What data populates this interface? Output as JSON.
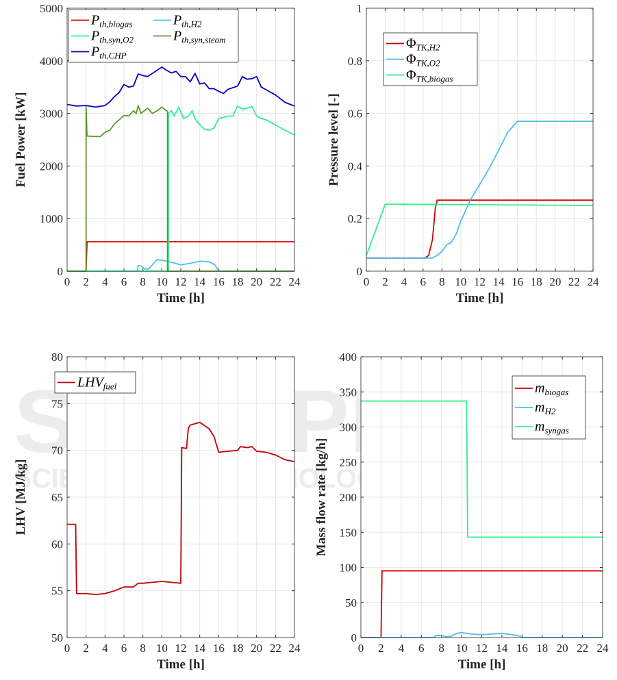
{
  "watermark": {
    "main": "SCITEPRESS",
    "sub": "SCIENCE AND TECHNOLOGY PUBLICATIONS"
  },
  "chart_data": [
    {
      "type": "line",
      "xlabel": "Time [h]",
      "ylabel": "Fuel Power [kW]",
      "xlim": [
        0,
        24
      ],
      "ylim": [
        0,
        5000
      ],
      "xticks": [
        0,
        2,
        4,
        6,
        8,
        10,
        12,
        14,
        16,
        18,
        20,
        22,
        24
      ],
      "yticks": [
        0,
        1000,
        2000,
        3000,
        4000,
        5000
      ],
      "grid": true,
      "legend_placement": "top-left",
      "legend_columns": 2,
      "series": [
        {
          "name": "P",
          "sub": "th,biogas",
          "color": "#d40000",
          "points": [
            [
              0,
              0
            ],
            [
              2,
              0
            ],
            [
              2.1,
              560
            ],
            [
              24,
              560
            ]
          ]
        },
        {
          "name": "P",
          "sub": "th,H2",
          "color": "#4dbeee",
          "points": [
            [
              0,
              0
            ],
            [
              7.4,
              0
            ],
            [
              7.5,
              110
            ],
            [
              7.8,
              100
            ],
            [
              8.2,
              40
            ],
            [
              8.6,
              40
            ],
            [
              9,
              120
            ],
            [
              9.5,
              220
            ],
            [
              10,
              210
            ],
            [
              11,
              170
            ],
            [
              12,
              120
            ],
            [
              13,
              150
            ],
            [
              14,
              190
            ],
            [
              15,
              180
            ],
            [
              15.6,
              120
            ],
            [
              16,
              10
            ],
            [
              16.1,
              0
            ],
            [
              24,
              0
            ]
          ]
        },
        {
          "name": "P",
          "sub": "th,syn,O2",
          "color": "#2ef08a",
          "points": [
            [
              0,
              0
            ],
            [
              10.7,
              0
            ],
            [
              10.7,
              3000
            ],
            [
              11,
              3050
            ],
            [
              11.3,
              2950
            ],
            [
              11.8,
              3120
            ],
            [
              12.3,
              2900
            ],
            [
              12.8,
              2950
            ],
            [
              13.2,
              3050
            ],
            [
              13.5,
              2900
            ],
            [
              14,
              2780
            ],
            [
              14.5,
              2700
            ],
            [
              15,
              2680
            ],
            [
              15.5,
              2720
            ],
            [
              16,
              2900
            ],
            [
              17,
              2950
            ],
            [
              17.5,
              2950
            ],
            [
              18,
              3140
            ],
            [
              18.5,
              3080
            ],
            [
              19,
              3100
            ],
            [
              19.5,
              3130
            ],
            [
              20,
              2950
            ],
            [
              20.5,
              2900
            ],
            [
              21,
              2880
            ],
            [
              22,
              2780
            ],
            [
              23,
              2680
            ],
            [
              24,
              2590
            ]
          ]
        },
        {
          "name": "P",
          "sub": "th,syn,steam",
          "color": "#5a9a2a",
          "points": [
            [
              0,
              0
            ],
            [
              2,
              0
            ],
            [
              2,
              3150
            ],
            [
              2.1,
              2570
            ],
            [
              3,
              2560
            ],
            [
              3.5,
              2560
            ],
            [
              4,
              2640
            ],
            [
              4.5,
              2680
            ],
            [
              5,
              2800
            ],
            [
              6,
              2960
            ],
            [
              6.5,
              2950
            ],
            [
              7,
              3050
            ],
            [
              7.3,
              3000
            ],
            [
              7.5,
              3150
            ],
            [
              7.8,
              3000
            ],
            [
              8.5,
              3100
            ],
            [
              9,
              3000
            ],
            [
              9.5,
              3050
            ],
            [
              10,
              3120
            ],
            [
              10.5,
              3050
            ],
            [
              10.6,
              3040
            ],
            [
              10.6,
              0
            ],
            [
              24,
              0
            ]
          ]
        },
        {
          "name": "P",
          "sub": "th,CHP",
          "color": "#0000c8",
          "points": [
            [
              0,
              3170
            ],
            [
              1,
              3140
            ],
            [
              2,
              3150
            ],
            [
              3,
              3120
            ],
            [
              4,
              3150
            ],
            [
              4.5,
              3220
            ],
            [
              5,
              3320
            ],
            [
              5.5,
              3400
            ],
            [
              6,
              3550
            ],
            [
              6.5,
              3500
            ],
            [
              7,
              3520
            ],
            [
              7.5,
              3750
            ],
            [
              8,
              3720
            ],
            [
              8.5,
              3700
            ],
            [
              9,
              3760
            ],
            [
              10,
              3880
            ],
            [
              10.5,
              3820
            ],
            [
              11,
              3770
            ],
            [
              11.5,
              3800
            ],
            [
              12,
              3700
            ],
            [
              12.5,
              3700
            ],
            [
              13,
              3600
            ],
            [
              13.5,
              3760
            ],
            [
              14,
              3560
            ],
            [
              14.5,
              3580
            ],
            [
              15,
              3470
            ],
            [
              15.5,
              3470
            ],
            [
              16,
              3420
            ],
            [
              16.5,
              3380
            ],
            [
              17,
              3460
            ],
            [
              18,
              3520
            ],
            [
              18.5,
              3700
            ],
            [
              19,
              3650
            ],
            [
              19.5,
              3660
            ],
            [
              20,
              3700
            ],
            [
              20.5,
              3500
            ],
            [
              21,
              3450
            ],
            [
              22,
              3350
            ],
            [
              23,
              3210
            ],
            [
              24,
              3140
            ]
          ]
        }
      ]
    },
    {
      "type": "line",
      "xlabel": "Time [h]",
      "ylabel": "Pressure level [-]",
      "xlim": [
        0,
        24
      ],
      "ylim": [
        0,
        1
      ],
      "xticks": [
        0,
        2,
        4,
        6,
        8,
        10,
        12,
        14,
        16,
        18,
        20,
        22,
        24
      ],
      "yticks": [
        0,
        0.2,
        0.4,
        0.6,
        0.8,
        1
      ],
      "ytick_labels": [
        "0",
        "0.2",
        "0.4",
        "0.6",
        "0.8",
        "1"
      ],
      "grid": true,
      "legend_placement": "top-left",
      "legend_columns": 1,
      "series": [
        {
          "name": "Φ",
          "sub": "TK,H2",
          "color": "#d40000",
          "points": [
            [
              0,
              0.05
            ],
            [
              6.2,
              0.05
            ],
            [
              6.6,
              0.06
            ],
            [
              7,
              0.12
            ],
            [
              7.3,
              0.24
            ],
            [
              7.5,
              0.27
            ],
            [
              24,
              0.27
            ]
          ]
        },
        {
          "name": "Φ",
          "sub": "TK,O2",
          "color": "#4dbeee",
          "points": [
            [
              0,
              0.05
            ],
            [
              7,
              0.05
            ],
            [
              7.5,
              0.06
            ],
            [
              8,
              0.075
            ],
            [
              8.5,
              0.1
            ],
            [
              9,
              0.11
            ],
            [
              9.5,
              0.14
            ],
            [
              10,
              0.19
            ],
            [
              11,
              0.27
            ],
            [
              12,
              0.33
            ],
            [
              13,
              0.39
            ],
            [
              14,
              0.46
            ],
            [
              15,
              0.53
            ],
            [
              16,
              0.57
            ],
            [
              24,
              0.57
            ]
          ]
        },
        {
          "name": "Φ",
          "sub": "TK,biogas",
          "color": "#2ef08a",
          "points": [
            [
              0,
              0.06
            ],
            [
              2,
              0.255
            ],
            [
              24,
              0.25
            ]
          ]
        }
      ]
    },
    {
      "type": "line",
      "xlabel": "Time [h]",
      "ylabel": "LHV [MJ/kg]",
      "xlim": [
        0,
        24
      ],
      "ylim": [
        50,
        80
      ],
      "xticks": [
        0,
        2,
        4,
        6,
        8,
        10,
        12,
        14,
        16,
        18,
        20,
        22,
        24
      ],
      "yticks": [
        50,
        55,
        60,
        65,
        70,
        75,
        80
      ],
      "grid": true,
      "legend_placement": "top-left",
      "legend_columns": 1,
      "series": [
        {
          "name": "LHV",
          "sub": "fuel",
          "color": "#c00000",
          "points": [
            [
              0,
              62.1
            ],
            [
              0.9,
              62.1
            ],
            [
              1,
              54.7
            ],
            [
              2,
              54.7
            ],
            [
              3,
              54.6
            ],
            [
              4,
              54.7
            ],
            [
              5,
              55.0
            ],
            [
              6,
              55.4
            ],
            [
              7,
              55.4
            ],
            [
              7.5,
              55.8
            ],
            [
              8,
              55.8
            ],
            [
              9,
              55.9
            ],
            [
              10,
              56.0
            ],
            [
              11,
              55.9
            ],
            [
              12,
              55.8
            ],
            [
              12.1,
              70.3
            ],
            [
              12.6,
              70.2
            ],
            [
              12.8,
              72.4
            ],
            [
              13,
              72.7
            ],
            [
              14,
              73.0
            ],
            [
              15,
              72.3
            ],
            [
              15.5,
              71.5
            ],
            [
              16,
              69.8
            ],
            [
              17,
              69.9
            ],
            [
              18,
              70.0
            ],
            [
              18.3,
              70.4
            ],
            [
              19,
              70.3
            ],
            [
              19.5,
              70.4
            ],
            [
              20,
              69.9
            ],
            [
              21,
              69.8
            ],
            [
              22,
              69.5
            ],
            [
              23,
              69.0
            ],
            [
              24,
              68.8
            ]
          ]
        }
      ]
    },
    {
      "type": "line",
      "xlabel": "Time [h]",
      "ylabel": "Mass flow rate [kg/h]",
      "xlim": [
        0,
        24
      ],
      "ylim": [
        0,
        400
      ],
      "xticks": [
        0,
        2,
        4,
        6,
        8,
        10,
        12,
        14,
        16,
        18,
        20,
        22,
        24
      ],
      "yticks": [
        0,
        50,
        100,
        150,
        200,
        250,
        300,
        350,
        400
      ],
      "grid": true,
      "legend_placement": "top-right",
      "legend_columns": 1,
      "series": [
        {
          "name": "m",
          "sub": "biogas",
          "color": "#d40000",
          "points": [
            [
              0,
              0
            ],
            [
              2,
              0
            ],
            [
              2.1,
              95
            ],
            [
              24,
              95
            ]
          ]
        },
        {
          "name": "m",
          "sub": "H2",
          "color": "#4dbeee",
          "points": [
            [
              0,
              0
            ],
            [
              7.3,
              0
            ],
            [
              7.4,
              3
            ],
            [
              8,
              3
            ],
            [
              8.5,
              1
            ],
            [
              9,
              2
            ],
            [
              9.5,
              6
            ],
            [
              10,
              7
            ],
            [
              11,
              5
            ],
            [
              12,
              4
            ],
            [
              13,
              5
            ],
            [
              14,
              6
            ],
            [
              15,
              4
            ],
            [
              15.6,
              3
            ],
            [
              16,
              0
            ],
            [
              24,
              0
            ]
          ]
        },
        {
          "name": "m",
          "sub": "syngas",
          "color": "#2ef08a",
          "points": [
            [
              0,
              337
            ],
            [
              10.5,
              337
            ],
            [
              10.6,
              143
            ],
            [
              24,
              143
            ]
          ]
        }
      ]
    }
  ]
}
